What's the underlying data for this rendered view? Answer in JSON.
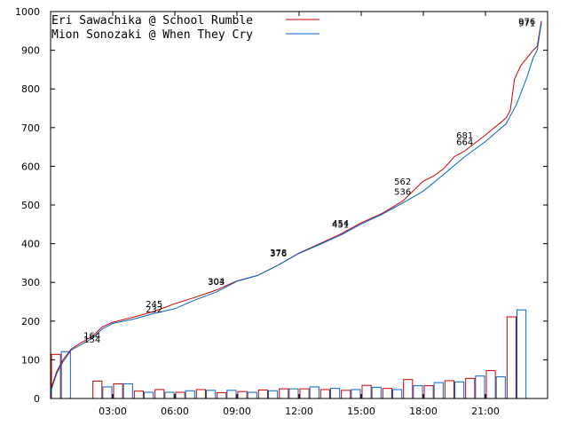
{
  "chart_data": {
    "type": "line",
    "xlim": [
      0,
      24
    ],
    "ylim": [
      0,
      1000
    ],
    "yticks": [
      0,
      100,
      200,
      300,
      400,
      500,
      600,
      700,
      800,
      900,
      1000
    ],
    "xticks": [
      {
        "x": 3,
        "label": "03:00"
      },
      {
        "x": 6,
        "label": "06:00"
      },
      {
        "x": 9,
        "label": "09:00"
      },
      {
        "x": 12,
        "label": "12:00"
      },
      {
        "x": 15,
        "label": "15:00"
      },
      {
        "x": 18,
        "label": "18:00"
      },
      {
        "x": 21,
        "label": "21:00"
      }
    ],
    "grid": false,
    "legend_position": "top-left",
    "series": [
      {
        "name": "Eri Sawachika @ School Rumble",
        "color": "#cc0000",
        "cumulative": [
          [
            0.0,
            0
          ],
          [
            0.05,
            30
          ],
          [
            0.3,
            70
          ],
          [
            0.6,
            100
          ],
          [
            1.0,
            128
          ],
          [
            1.5,
            145
          ],
          [
            2.0,
            160
          ],
          [
            2.5,
            185
          ],
          [
            3.0,
            197
          ],
          [
            4.0,
            210
          ],
          [
            5.0,
            225
          ],
          [
            6.0,
            245
          ],
          [
            7.0,
            262
          ],
          [
            8.0,
            280
          ],
          [
            9.0,
            304
          ],
          [
            10.0,
            318
          ],
          [
            11.0,
            345
          ],
          [
            12.0,
            376
          ],
          [
            13.0,
            400
          ],
          [
            14.0,
            425
          ],
          [
            15.0,
            454
          ],
          [
            16.0,
            478
          ],
          [
            17.0,
            510
          ],
          [
            18.0,
            562
          ],
          [
            18.5,
            575
          ],
          [
            19.0,
            595
          ],
          [
            19.5,
            625
          ],
          [
            20.0,
            640
          ],
          [
            21.0,
            681
          ],
          [
            22.0,
            725
          ],
          [
            22.2,
            745
          ],
          [
            22.4,
            825
          ],
          [
            22.7,
            860
          ],
          [
            23.0,
            880
          ],
          [
            23.3,
            900
          ],
          [
            23.5,
            910
          ],
          [
            23.7,
            976
          ]
        ],
        "hourly": [
          114,
          0,
          45,
          38,
          19,
          23,
          16,
          23,
          15,
          18,
          22,
          25,
          25,
          23,
          21,
          34,
          26,
          49,
          33,
          46,
          52,
          72,
          211,
          0
        ]
      },
      {
        "name": "Mion Sonozaki @ When They Cry",
        "color": "#0066cc",
        "cumulative": [
          [
            0.0,
            0
          ],
          [
            0.05,
            25
          ],
          [
            0.3,
            65
          ],
          [
            0.6,
            95
          ],
          [
            1.0,
            125
          ],
          [
            1.5,
            140
          ],
          [
            2.0,
            155
          ],
          [
            2.5,
            180
          ],
          [
            3.0,
            194
          ],
          [
            4.0,
            205
          ],
          [
            5.0,
            220
          ],
          [
            6.0,
            232
          ],
          [
            7.0,
            255
          ],
          [
            8.0,
            275
          ],
          [
            9.0,
            303
          ],
          [
            10.0,
            318
          ],
          [
            11.0,
            345
          ],
          [
            12.0,
            375
          ],
          [
            13.0,
            398
          ],
          [
            14.0,
            422
          ],
          [
            15.0,
            451
          ],
          [
            16.0,
            476
          ],
          [
            17.0,
            505
          ],
          [
            18.0,
            536
          ],
          [
            19.0,
            580
          ],
          [
            20.0,
            625
          ],
          [
            21.0,
            664
          ],
          [
            22.0,
            710
          ],
          [
            22.5,
            760
          ],
          [
            23.0,
            830
          ],
          [
            23.3,
            880
          ],
          [
            23.5,
            900
          ],
          [
            23.7,
            971
          ]
        ],
        "hourly": [
          121,
          0,
          30,
          38,
          16,
          16,
          20,
          21,
          21,
          16,
          20,
          25,
          30,
          26,
          23,
          29,
          23,
          33,
          41,
          43,
          58,
          56,
          229,
          0
        ]
      }
    ],
    "annotations": [
      {
        "x": 2.0,
        "y": 164,
        "text": "164"
      },
      {
        "x": 2.0,
        "y": 154,
        "text": "154"
      },
      {
        "x": 5.0,
        "y": 245,
        "text": "245"
      },
      {
        "x": 5.0,
        "y": 232,
        "text": "232"
      },
      {
        "x": 8.0,
        "y": 304,
        "text": "304"
      },
      {
        "x": 8.0,
        "y": 303,
        "text": "303"
      },
      {
        "x": 11.0,
        "y": 378,
        "text": "378"
      },
      {
        "x": 11.0,
        "y": 376,
        "text": "376"
      },
      {
        "x": 14.0,
        "y": 454,
        "text": "454"
      },
      {
        "x": 14.0,
        "y": 451,
        "text": "451"
      },
      {
        "x": 17.0,
        "y": 562,
        "text": "562"
      },
      {
        "x": 17.0,
        "y": 536,
        "text": "536"
      },
      {
        "x": 20.0,
        "y": 681,
        "text": "681"
      },
      {
        "x": 20.0,
        "y": 664,
        "text": "664"
      },
      {
        "x": 23.0,
        "y": 976,
        "text": "976"
      },
      {
        "x": 23.0,
        "y": 971,
        "text": "971"
      }
    ]
  }
}
